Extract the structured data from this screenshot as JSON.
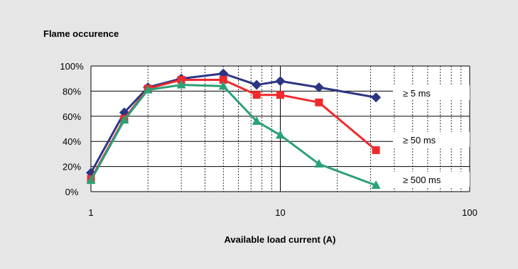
{
  "chart_data": {
    "type": "line",
    "title": "Flame occurence",
    "xlabel": "Available load current (A)",
    "ylabel": "",
    "xscale": "log",
    "xlim": [
      1,
      100
    ],
    "ylim": [
      0,
      100
    ],
    "x_ticks": [
      "1",
      "10",
      "100"
    ],
    "y_ticks": [
      "0%",
      "20%",
      "40%",
      "60%",
      "80%",
      "100%"
    ],
    "grid": true,
    "legend_placement": "right, next to line ends",
    "series": [
      {
        "name": "≥ 5 ms",
        "color": "#2b3584",
        "marker": "diamond",
        "x": [
          1,
          1.5,
          2,
          3,
          5,
          7.5,
          10,
          16,
          32
        ],
        "y": [
          15,
          63,
          83,
          90,
          94,
          85,
          88,
          83,
          75
        ]
      },
      {
        "name": "≥ 50 ms",
        "color": "#ee2a2d",
        "marker": "square",
        "x": [
          1,
          1.5,
          2,
          3,
          5,
          7.5,
          10,
          16,
          32
        ],
        "y": [
          10,
          58,
          82,
          89,
          89,
          77,
          77,
          71,
          33
        ]
      },
      {
        "name": "≥ 500 ms",
        "color": "#2aa177",
        "marker": "triangle",
        "x": [
          1,
          1.5,
          2,
          3,
          5,
          7.5,
          10,
          16,
          32
        ],
        "y": [
          9,
          57,
          81,
          85,
          84,
          56,
          45,
          22,
          5
        ]
      }
    ]
  }
}
